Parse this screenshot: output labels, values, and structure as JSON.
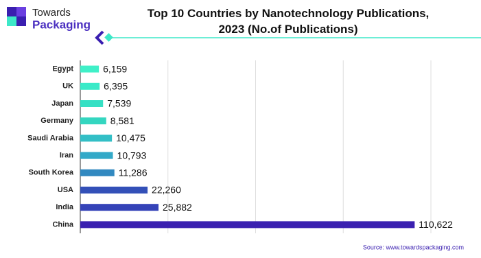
{
  "brand": {
    "line1": "Towards",
    "line2": "Packaging"
  },
  "chart_data": {
    "type": "bar",
    "orientation": "horizontal",
    "title": "Top 10 Countries by Nanotechnology Publications, 2023 (No.of Publications)",
    "categories": [
      "Egypt",
      "UK",
      "Japan",
      "Germany",
      "Saudi Arabia",
      "Iran",
      "South Korea",
      "USA",
      "India",
      "China"
    ],
    "values": [
      6159,
      6395,
      7539,
      8581,
      10475,
      10793,
      11286,
      22260,
      25882,
      110622
    ],
    "value_labels": [
      "6,159",
      "6,395",
      "7,539",
      "8,581",
      "10,475",
      "10,793",
      "11,286",
      "22,260",
      "25,882",
      "110,622"
    ],
    "colors": [
      "#3ff0c8",
      "#3aeac8",
      "#36e0c4",
      "#34d6c0",
      "#33bfc6",
      "#33a9c8",
      "#3289c0",
      "#3350b8",
      "#3543b8",
      "#3a20b0"
    ],
    "xlim": [
      0,
      116000
    ],
    "xticks": [
      0,
      29000,
      58000,
      87000,
      116000
    ],
    "grid": true,
    "source": "Source: www.towardspackaging.com"
  }
}
